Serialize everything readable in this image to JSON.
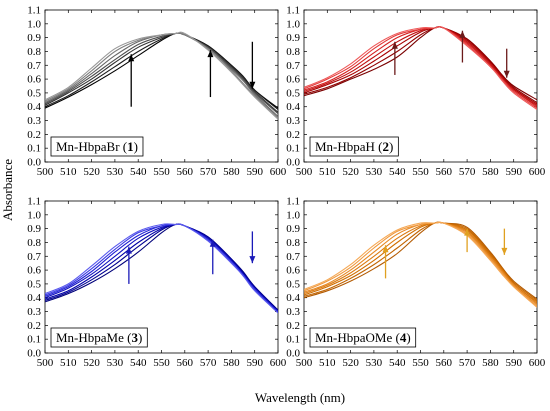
{
  "figure": {
    "ylabel": "Absorbance",
    "xlabel": "Wavelength (nm)"
  },
  "chart_data": [
    {
      "type": "line",
      "label": "Mn-HbpaBr (",
      "label_num": "1",
      "label_end": ")",
      "xlim": [
        500,
        600
      ],
      "ylim": [
        0.0,
        1.1
      ],
      "x_ticks": [
        "500",
        "510",
        "520",
        "530",
        "540",
        "550",
        "560",
        "570",
        "580",
        "590",
        "600"
      ],
      "y_ticks": [
        "0.0",
        "0.1",
        "0.2",
        "0.3",
        "0.4",
        "0.5",
        "0.6",
        "0.7",
        "0.8",
        "0.9",
        "1.0",
        "1.1"
      ],
      "colors": [
        "#000000",
        "#1a1a1a",
        "#333333",
        "#4d4d4d",
        "#666666",
        "#808080",
        "#999999"
      ],
      "series": [
        {
          "x": [
            500,
            510,
            520,
            530,
            540,
            550,
            556,
            560,
            570,
            580,
            585,
            590,
            600
          ],
          "y": [
            0.39,
            0.47,
            0.56,
            0.66,
            0.77,
            0.88,
            0.93,
            0.92,
            0.84,
            0.7,
            0.62,
            0.52,
            0.39
          ]
        },
        {
          "x": [
            500,
            510,
            520,
            530,
            540,
            550,
            556,
            560,
            570,
            580,
            585,
            590,
            600
          ],
          "y": [
            0.4,
            0.48,
            0.58,
            0.69,
            0.8,
            0.89,
            0.93,
            0.92,
            0.84,
            0.7,
            0.62,
            0.52,
            0.38
          ]
        },
        {
          "x": [
            500,
            510,
            520,
            530,
            540,
            550,
            556,
            560,
            570,
            580,
            585,
            590,
            600
          ],
          "y": [
            0.41,
            0.5,
            0.6,
            0.72,
            0.83,
            0.9,
            0.93,
            0.92,
            0.83,
            0.69,
            0.61,
            0.51,
            0.36
          ]
        },
        {
          "x": [
            500,
            510,
            520,
            530,
            540,
            550,
            556,
            560,
            570,
            580,
            585,
            590,
            600
          ],
          "y": [
            0.42,
            0.51,
            0.62,
            0.74,
            0.85,
            0.91,
            0.93,
            0.92,
            0.83,
            0.68,
            0.6,
            0.5,
            0.35
          ]
        },
        {
          "x": [
            500,
            510,
            520,
            530,
            540,
            550,
            556,
            560,
            570,
            580,
            585,
            590,
            600
          ],
          "y": [
            0.43,
            0.52,
            0.64,
            0.77,
            0.87,
            0.92,
            0.93,
            0.92,
            0.82,
            0.67,
            0.59,
            0.49,
            0.33
          ]
        },
        {
          "x": [
            500,
            510,
            520,
            530,
            540,
            550,
            556,
            560,
            570,
            580,
            585,
            590,
            600
          ],
          "y": [
            0.44,
            0.53,
            0.66,
            0.8,
            0.88,
            0.92,
            0.93,
            0.92,
            0.82,
            0.66,
            0.57,
            0.48,
            0.32
          ]
        },
        {
          "x": [
            500,
            510,
            520,
            530,
            540,
            550,
            556,
            560,
            570,
            580,
            585,
            590,
            600
          ],
          "y": [
            0.45,
            0.54,
            0.68,
            0.82,
            0.89,
            0.92,
            0.93,
            0.93,
            0.81,
            0.65,
            0.56,
            0.47,
            0.31
          ]
        }
      ],
      "arrows": [
        {
          "x": 537,
          "y_from": 0.4,
          "y_to": 0.78,
          "dir": "up"
        },
        {
          "x": 571,
          "y_from": 0.47,
          "y_to": 0.81,
          "dir": "up"
        },
        {
          "x": 589,
          "y_from": 0.87,
          "y_to": 0.53,
          "dir": "down"
        }
      ],
      "arrow_color": "#000000"
    },
    {
      "type": "line",
      "label": "Mn-HbpaH (",
      "label_num": "2",
      "label_end": ")",
      "xlim": [
        500,
        600
      ],
      "ylim": [
        0.0,
        1.1
      ],
      "x_ticks": [
        "500",
        "510",
        "520",
        "530",
        "540",
        "550",
        "560",
        "570",
        "580",
        "590",
        "600"
      ],
      "y_ticks": [
        "0.0",
        "0.1",
        "0.2",
        "0.3",
        "0.4",
        "0.5",
        "0.6",
        "0.7",
        "0.8",
        "0.9",
        "1.0",
        "1.1"
      ],
      "colors": [
        "#7a0000",
        "#900000",
        "#a80000",
        "#bf1010",
        "#d42020",
        "#e23a3a",
        "#ee5a5a"
      ],
      "series": [
        {
          "x": [
            500,
            510,
            520,
            530,
            540,
            550,
            556,
            560,
            570,
            580,
            585,
            590,
            600
          ],
          "y": [
            0.48,
            0.53,
            0.6,
            0.67,
            0.76,
            0.9,
            0.97,
            0.97,
            0.89,
            0.73,
            0.63,
            0.55,
            0.45
          ]
        },
        {
          "x": [
            500,
            510,
            520,
            530,
            540,
            550,
            556,
            560,
            570,
            580,
            585,
            590,
            600
          ],
          "y": [
            0.49,
            0.54,
            0.61,
            0.7,
            0.8,
            0.92,
            0.97,
            0.97,
            0.89,
            0.73,
            0.63,
            0.54,
            0.43
          ]
        },
        {
          "x": [
            500,
            510,
            520,
            530,
            540,
            550,
            556,
            560,
            570,
            580,
            585,
            590,
            600
          ],
          "y": [
            0.5,
            0.56,
            0.63,
            0.73,
            0.84,
            0.94,
            0.97,
            0.97,
            0.88,
            0.72,
            0.62,
            0.53,
            0.42
          ]
        },
        {
          "x": [
            500,
            510,
            520,
            530,
            540,
            550,
            556,
            560,
            570,
            580,
            585,
            590,
            600
          ],
          "y": [
            0.51,
            0.57,
            0.65,
            0.76,
            0.87,
            0.95,
            0.97,
            0.97,
            0.87,
            0.71,
            0.61,
            0.52,
            0.41
          ]
        },
        {
          "x": [
            500,
            510,
            520,
            530,
            540,
            550,
            556,
            560,
            570,
            580,
            585,
            590,
            600
          ],
          "y": [
            0.52,
            0.58,
            0.67,
            0.79,
            0.9,
            0.96,
            0.97,
            0.97,
            0.86,
            0.7,
            0.6,
            0.52,
            0.4
          ]
        },
        {
          "x": [
            500,
            510,
            520,
            530,
            540,
            550,
            556,
            560,
            570,
            580,
            585,
            590,
            600
          ],
          "y": [
            0.53,
            0.6,
            0.69,
            0.82,
            0.92,
            0.96,
            0.97,
            0.97,
            0.85,
            0.69,
            0.6,
            0.51,
            0.39
          ]
        },
        {
          "x": [
            500,
            510,
            520,
            530,
            540,
            550,
            556,
            560,
            570,
            580,
            585,
            590,
            600
          ],
          "y": [
            0.54,
            0.61,
            0.71,
            0.84,
            0.93,
            0.97,
            0.97,
            0.97,
            0.84,
            0.69,
            0.59,
            0.5,
            0.38
          ]
        }
      ],
      "arrows": [
        {
          "x": 539,
          "y_from": 0.63,
          "y_to": 0.87,
          "dir": "up"
        },
        {
          "x": 568,
          "y_from": 0.72,
          "y_to": 0.95,
          "dir": "up"
        },
        {
          "x": 587,
          "y_from": 0.82,
          "y_to": 0.61,
          "dir": "down"
        }
      ],
      "arrow_color": "#6b1a1a"
    },
    {
      "type": "line",
      "label": "Mn-HbpaMe (",
      "label_num": "3",
      "label_end": ")",
      "xlim": [
        500,
        600
      ],
      "ylim": [
        0.0,
        1.1
      ],
      "x_ticks": [
        "500",
        "510",
        "520",
        "530",
        "540",
        "550",
        "560",
        "570",
        "580",
        "590",
        "600"
      ],
      "y_ticks": [
        "0.0",
        "0.1",
        "0.2",
        "0.3",
        "0.4",
        "0.5",
        "0.6",
        "0.7",
        "0.8",
        "0.9",
        "1.0",
        "1.1"
      ],
      "colors": [
        "#00007a",
        "#000090",
        "#0000a8",
        "#1010bf",
        "#2020d4",
        "#3a3ae2",
        "#5a5aee"
      ],
      "series": [
        {
          "x": [
            500,
            510,
            520,
            530,
            540,
            550,
            556,
            560,
            570,
            580,
            585,
            590,
            600
          ],
          "y": [
            0.37,
            0.43,
            0.51,
            0.61,
            0.73,
            0.87,
            0.93,
            0.92,
            0.84,
            0.68,
            0.59,
            0.48,
            0.31
          ]
        },
        {
          "x": [
            500,
            510,
            520,
            530,
            540,
            550,
            556,
            560,
            570,
            580,
            585,
            590,
            600
          ],
          "y": [
            0.38,
            0.44,
            0.53,
            0.64,
            0.77,
            0.89,
            0.93,
            0.92,
            0.84,
            0.68,
            0.58,
            0.48,
            0.31
          ]
        },
        {
          "x": [
            500,
            510,
            520,
            530,
            540,
            550,
            556,
            560,
            570,
            580,
            585,
            590,
            600
          ],
          "y": [
            0.39,
            0.45,
            0.55,
            0.67,
            0.8,
            0.9,
            0.93,
            0.92,
            0.83,
            0.67,
            0.58,
            0.47,
            0.3
          ]
        },
        {
          "x": [
            500,
            510,
            520,
            530,
            540,
            550,
            556,
            560,
            570,
            580,
            585,
            590,
            600
          ],
          "y": [
            0.4,
            0.47,
            0.57,
            0.7,
            0.83,
            0.91,
            0.93,
            0.92,
            0.83,
            0.67,
            0.57,
            0.47,
            0.3
          ]
        },
        {
          "x": [
            500,
            510,
            520,
            530,
            540,
            550,
            556,
            560,
            570,
            580,
            585,
            590,
            600
          ],
          "y": [
            0.41,
            0.48,
            0.59,
            0.73,
            0.85,
            0.92,
            0.93,
            0.92,
            0.82,
            0.66,
            0.57,
            0.46,
            0.3
          ]
        },
        {
          "x": [
            500,
            510,
            520,
            530,
            540,
            550,
            556,
            560,
            570,
            580,
            585,
            590,
            600
          ],
          "y": [
            0.42,
            0.49,
            0.61,
            0.75,
            0.87,
            0.92,
            0.93,
            0.92,
            0.82,
            0.66,
            0.56,
            0.46,
            0.29
          ]
        },
        {
          "x": [
            500,
            510,
            520,
            530,
            540,
            550,
            556,
            560,
            570,
            580,
            585,
            590,
            600
          ],
          "y": [
            0.43,
            0.5,
            0.63,
            0.77,
            0.88,
            0.93,
            0.93,
            0.92,
            0.81,
            0.65,
            0.56,
            0.45,
            0.29
          ]
        }
      ],
      "arrows": [
        {
          "x": 536,
          "y_from": 0.5,
          "y_to": 0.77,
          "dir": "up"
        },
        {
          "x": 572,
          "y_from": 0.57,
          "y_to": 0.82,
          "dir": "up"
        },
        {
          "x": 589,
          "y_from": 0.88,
          "y_to": 0.65,
          "dir": "down"
        }
      ],
      "arrow_color": "#1a1ab8"
    },
    {
      "type": "line",
      "label": "Mn-HbpaOMe (",
      "label_num": "4",
      "label_end": ")",
      "xlim": [
        500,
        600
      ],
      "ylim": [
        0.0,
        1.1
      ],
      "x_ticks": [
        "500",
        "510",
        "520",
        "530",
        "540",
        "550",
        "560",
        "570",
        "580",
        "590",
        "600"
      ],
      "y_ticks": [
        "0.0",
        "0.1",
        "0.2",
        "0.3",
        "0.4",
        "0.5",
        "0.6",
        "0.7",
        "0.8",
        "0.9",
        "1.0",
        "1.1"
      ],
      "colors": [
        "#b35a00",
        "#c26400",
        "#d06e00",
        "#dc7a10",
        "#e68824",
        "#ef983c",
        "#f5a855"
      ],
      "series": [
        {
          "x": [
            500,
            510,
            520,
            530,
            540,
            550,
            556,
            560,
            570,
            580,
            585,
            590,
            600
          ],
          "y": [
            0.4,
            0.45,
            0.52,
            0.61,
            0.72,
            0.87,
            0.94,
            0.94,
            0.91,
            0.73,
            0.62,
            0.52,
            0.39
          ]
        },
        {
          "x": [
            500,
            510,
            520,
            530,
            540,
            550,
            556,
            560,
            570,
            580,
            585,
            590,
            600
          ],
          "y": [
            0.41,
            0.46,
            0.54,
            0.64,
            0.76,
            0.89,
            0.94,
            0.94,
            0.9,
            0.72,
            0.61,
            0.51,
            0.38
          ]
        },
        {
          "x": [
            500,
            510,
            520,
            530,
            540,
            550,
            556,
            560,
            570,
            580,
            585,
            590,
            600
          ],
          "y": [
            0.42,
            0.48,
            0.56,
            0.67,
            0.8,
            0.91,
            0.94,
            0.94,
            0.89,
            0.71,
            0.61,
            0.5,
            0.37
          ]
        },
        {
          "x": [
            500,
            510,
            520,
            530,
            540,
            550,
            556,
            560,
            570,
            580,
            585,
            590,
            600
          ],
          "y": [
            0.43,
            0.49,
            0.58,
            0.7,
            0.83,
            0.92,
            0.94,
            0.94,
            0.88,
            0.7,
            0.6,
            0.5,
            0.36
          ]
        },
        {
          "x": [
            500,
            510,
            520,
            530,
            540,
            550,
            556,
            560,
            570,
            580,
            585,
            590,
            600
          ],
          "y": [
            0.44,
            0.5,
            0.6,
            0.73,
            0.86,
            0.93,
            0.94,
            0.94,
            0.87,
            0.69,
            0.59,
            0.49,
            0.35
          ]
        },
        {
          "x": [
            500,
            510,
            520,
            530,
            540,
            550,
            556,
            560,
            570,
            580,
            585,
            590,
            600
          ],
          "y": [
            0.45,
            0.52,
            0.62,
            0.76,
            0.88,
            0.93,
            0.94,
            0.94,
            0.86,
            0.68,
            0.58,
            0.48,
            0.34
          ]
        },
        {
          "x": [
            500,
            510,
            520,
            530,
            540,
            550,
            556,
            560,
            570,
            580,
            585,
            590,
            600
          ],
          "y": [
            0.46,
            0.53,
            0.64,
            0.78,
            0.89,
            0.94,
            0.94,
            0.94,
            0.85,
            0.67,
            0.57,
            0.48,
            0.33
          ]
        }
      ],
      "arrows": [
        {
          "x": 535,
          "y_from": 0.54,
          "y_to": 0.78,
          "dir": "up"
        },
        {
          "x": 570,
          "y_from": 0.73,
          "y_to": 0.9,
          "dir": "up"
        },
        {
          "x": 586,
          "y_from": 0.9,
          "y_to": 0.71,
          "dir": "down"
        }
      ],
      "arrow_color": "#e0a020"
    }
  ]
}
